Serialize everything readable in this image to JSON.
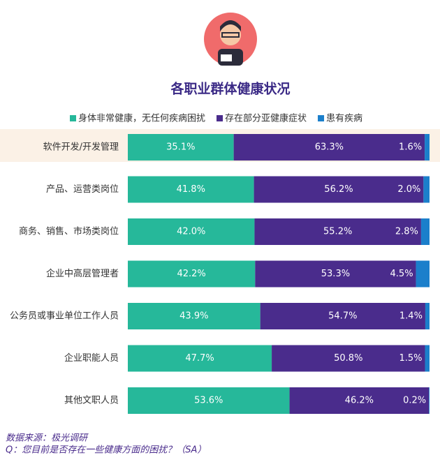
{
  "chart_data": {
    "type": "stacked-bar-horizontal",
    "title": "各职业群体健康状况",
    "categories": [
      "软件开发/开发管理",
      "产品、运营类岗位",
      "商务、销售、市场类岗位",
      "企业中高层管理者",
      "公务员或事业单位工作人员",
      "企业职能人员",
      "其他文职人员"
    ],
    "series": [
      {
        "name": "身体非常健康，无任何疾病困扰",
        "color": "#26b89a",
        "values": [
          35.1,
          41.8,
          42.0,
          42.2,
          43.9,
          47.7,
          53.6
        ],
        "value_labels": [
          "35.1%",
          "41.8%",
          "42.0%",
          "42.2%",
          "43.9%",
          "47.7%",
          "53.6%"
        ]
      },
      {
        "name": "存在部分亚健康症状",
        "color": "#4a2c8c",
        "values": [
          63.3,
          56.2,
          55.2,
          53.3,
          54.7,
          50.8,
          46.2
        ],
        "value_labels": [
          "63.3%",
          "56.2%",
          "55.2%",
          "53.3%",
          "54.7%",
          "50.8%",
          "46.2%"
        ]
      },
      {
        "name": "患有疾病",
        "color": "#1b7fcb",
        "values": [
          1.6,
          2.0,
          2.8,
          4.5,
          1.4,
          1.5,
          0.2
        ],
        "value_labels": [
          "1.6%",
          "2.0%",
          "2.8%",
          "4.5%",
          "1.4%",
          "1.5%",
          "0.2%"
        ]
      }
    ],
    "xlim": [
      0,
      100
    ]
  },
  "footnotes": [
    "数据来源：极光调研",
    "Q：您目前是否存在一些健康方面的困扰？（SA）"
  ]
}
